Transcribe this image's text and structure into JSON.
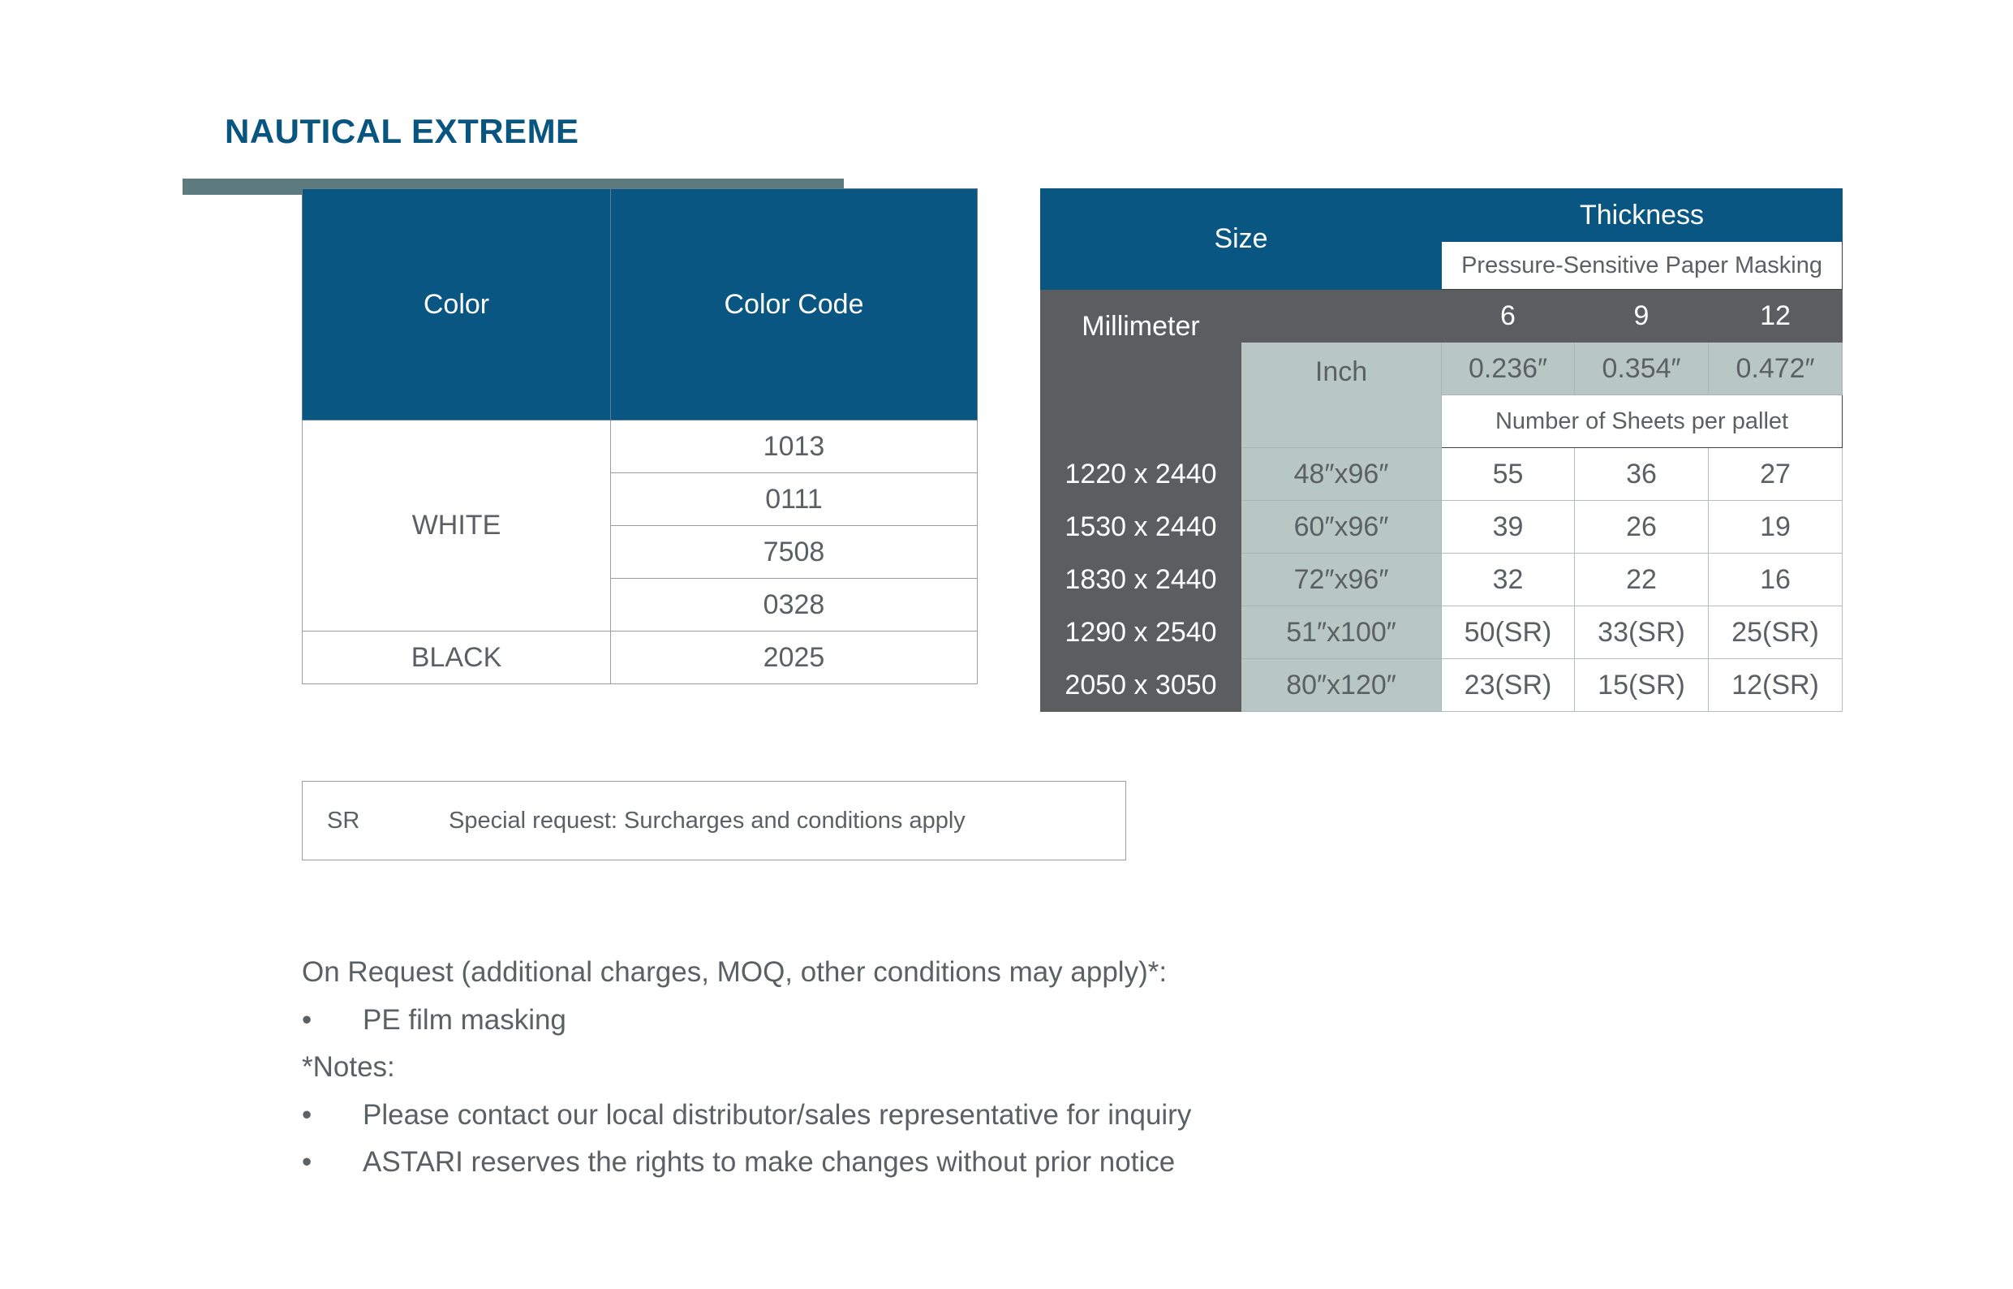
{
  "title": "NAUTICAL EXTREME",
  "color_table": {
    "header_color": "Color",
    "header_code": "Color Code",
    "white_label": "WHITE",
    "white_codes": [
      "1013",
      "0111",
      "7508",
      "0328"
    ],
    "black_label": "BLACK",
    "black_code": "2025"
  },
  "size_table": {
    "size_label": "Size",
    "thickness_label": "Thickness",
    "masking_label": "Pressure-Sensitive Paper Masking",
    "millimeter_label": "Millimeter",
    "inch_label": "Inch",
    "thickness_mm": [
      "6",
      "9",
      "12"
    ],
    "thickness_inch": [
      "0.236″",
      "0.354″",
      "0.472″"
    ],
    "sheets_label": "Number of Sheets per pallet",
    "rows": [
      {
        "mm": "1220 x 2440",
        "inch": "48″x96″",
        "t6": "55",
        "t9": "36",
        "t12": "27"
      },
      {
        "mm": "1530 x 2440",
        "inch": "60″x96″",
        "t6": "39",
        "t9": "26",
        "t12": "19"
      },
      {
        "mm": "1830 x 2440",
        "inch": "72″x96″",
        "t6": "32",
        "t9": "22",
        "t12": "16"
      },
      {
        "mm": "1290 x 2540",
        "inch": "51″x100″",
        "t6": "50(SR)",
        "t9": "33(SR)",
        "t12": "25(SR)"
      },
      {
        "mm": "2050 x 3050",
        "inch": "80″x120″",
        "t6": "23(SR)",
        "t9": "15(SR)",
        "t12": "12(SR)"
      }
    ]
  },
  "legend": {
    "abbr": "SR",
    "description": "Special request: Surcharges and conditions apply"
  },
  "notes": {
    "on_request": "On Request (additional charges, MOQ, other conditions may apply)*:",
    "on_request_items": [
      "PE film masking"
    ],
    "notes_label": "*Notes:",
    "note_items": [
      "Please contact our local distributor/sales representative for inquiry",
      "ASTARI reserves the rights to make changes without prior notice"
    ],
    "bullet": "•"
  },
  "colors": {
    "brand_blue": "#0a5683",
    "dark_gray": "#5b5d61",
    "sage": "#b9c7c4",
    "accent_bar": "#5d7b7f"
  }
}
